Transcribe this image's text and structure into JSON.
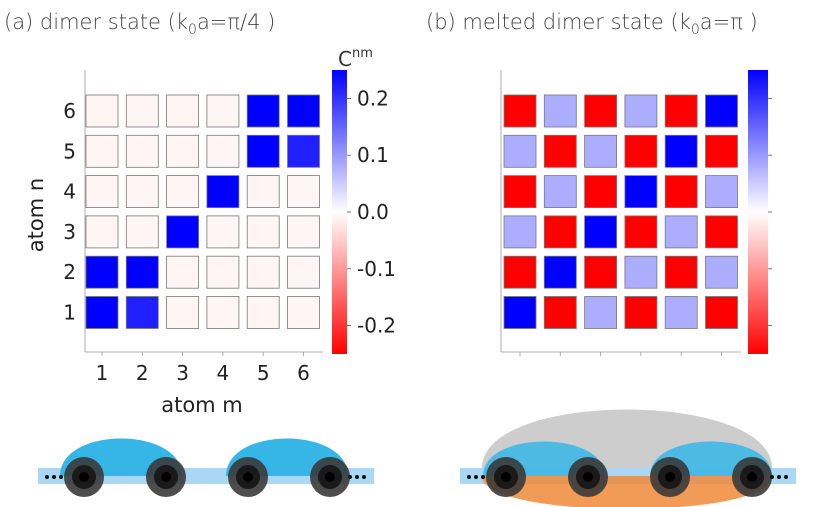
{
  "chart_data": [
    {
      "type": "heatmap",
      "panel": "a",
      "title": "(a) dimer state (k",
      "title_sub": "0",
      "title_tail": "a=π/4 )",
      "xlabel": "atom m",
      "ylabel": "atom n",
      "x_categories": [
        "1",
        "2",
        "3",
        "4",
        "5",
        "6"
      ],
      "y_categories": [
        "1",
        "2",
        "3",
        "4",
        "5",
        "6"
      ],
      "colorbar": {
        "label": "C",
        "label_sup": "nm",
        "ticks": [
          "0.2",
          "0.1",
          "0.0",
          "-0.1",
          "-0.2"
        ],
        "range": [
          -0.25,
          0.25
        ],
        "colormap": [
          "#ff0000",
          "#ffffff",
          "#0000ff"
        ]
      },
      "matrix_rows_n1_to_n6": [
        [
          0.25,
          0.22,
          -0.01,
          -0.01,
          -0.01,
          -0.01
        ],
        [
          0.25,
          0.25,
          -0.01,
          -0.01,
          -0.01,
          -0.01
        ],
        [
          -0.01,
          -0.01,
          0.25,
          -0.01,
          -0.01,
          -0.01
        ],
        [
          -0.01,
          -0.01,
          -0.01,
          0.25,
          -0.01,
          -0.01
        ],
        [
          -0.01,
          -0.01,
          -0.01,
          -0.01,
          0.25,
          0.22
        ],
        [
          -0.01,
          -0.01,
          -0.01,
          -0.01,
          0.25,
          0.25
        ]
      ]
    },
    {
      "type": "heatmap",
      "panel": "b",
      "title": "(b) melted dimer state (k",
      "title_sub": "0",
      "title_tail": "a=π )",
      "xlabel": "",
      "ylabel": "",
      "x_categories": [],
      "y_categories": [],
      "colorbar": {
        "range": [
          -0.25,
          0.25
        ],
        "colormap": [
          "#ff0000",
          "#ffffff",
          "#0000ff"
        ]
      },
      "matrix_rows_n1_to_n6": [
        [
          0.25,
          -0.25,
          0.08,
          -0.25,
          0.08,
          -0.25
        ],
        [
          -0.25,
          0.25,
          -0.25,
          0.08,
          -0.25,
          0.08
        ],
        [
          0.08,
          -0.25,
          0.25,
          -0.25,
          0.08,
          -0.25
        ],
        [
          -0.25,
          0.08,
          -0.25,
          0.25,
          -0.25,
          0.08
        ],
        [
          0.08,
          -0.25,
          0.08,
          -0.25,
          0.25,
          -0.25
        ],
        [
          -0.25,
          0.08,
          -0.25,
          0.08,
          -0.25,
          0.25
        ]
      ]
    }
  ],
  "colors": {
    "bond_blue": "#35b6e6",
    "bond_gray": "#c4c4c4",
    "bond_orange": "#f0893a",
    "chain_line": "#a9d7f4",
    "atom_outer": "#3a3a3a",
    "atom_inner": "#000000"
  }
}
